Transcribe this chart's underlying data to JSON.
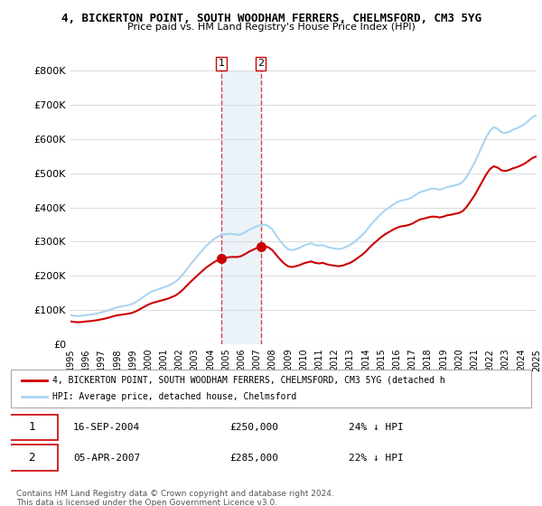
{
  "title": "4, BICKERTON POINT, SOUTH WOODHAM FERRERS, CHELMSFORD, CM3 5YG",
  "subtitle": "Price paid vs. HM Land Registry's House Price Index (HPI)",
  "ylabel": "",
  "xlabel": "",
  "ylim": [
    0,
    800000
  ],
  "yticks": [
    0,
    100000,
    200000,
    300000,
    400000,
    500000,
    600000,
    700000,
    800000
  ],
  "ytick_labels": [
    "£0",
    "£100K",
    "£200K",
    "£300K",
    "£400K",
    "£500K",
    "£600K",
    "£700K",
    "£800K"
  ],
  "background_color": "#ffffff",
  "plot_bg_color": "#ffffff",
  "grid_color": "#dddddd",
  "hpi_color": "#aad4f0",
  "price_color": "#cc0000",
  "sale1_date": "16-SEP-2004",
  "sale1_price": 250000,
  "sale1_pct": "24% ↓ HPI",
  "sale2_date": "05-APR-2007",
  "sale2_price": 285000,
  "sale2_pct": "22% ↓ HPI",
  "legend_line1": "4, BICKERTON POINT, SOUTH WOODHAM FERRERS, CHELMSFORD, CM3 5YG (detached h",
  "legend_line2": "HPI: Average price, detached house, Chelmsford",
  "footnote": "Contains HM Land Registry data © Crown copyright and database right 2024.\nThis data is licensed under the Open Government Licence v3.0.",
  "hpi_years": [
    1995.0,
    1995.25,
    1995.5,
    1995.75,
    1996.0,
    1996.25,
    1996.5,
    1996.75,
    1997.0,
    1997.25,
    1997.5,
    1997.75,
    1998.0,
    1998.25,
    1998.5,
    1998.75,
    1999.0,
    1999.25,
    1999.5,
    1999.75,
    2000.0,
    2000.25,
    2000.5,
    2000.75,
    2001.0,
    2001.25,
    2001.5,
    2001.75,
    2002.0,
    2002.25,
    2002.5,
    2002.75,
    2003.0,
    2003.25,
    2003.5,
    2003.75,
    2004.0,
    2004.25,
    2004.5,
    2004.75,
    2005.0,
    2005.25,
    2005.5,
    2005.75,
    2006.0,
    2006.25,
    2006.5,
    2006.75,
    2007.0,
    2007.25,
    2007.5,
    2007.75,
    2008.0,
    2008.25,
    2008.5,
    2008.75,
    2009.0,
    2009.25,
    2009.5,
    2009.75,
    2010.0,
    2010.25,
    2010.5,
    2010.75,
    2011.0,
    2011.25,
    2011.5,
    2011.75,
    2012.0,
    2012.25,
    2012.5,
    2012.75,
    2013.0,
    2013.25,
    2013.5,
    2013.75,
    2014.0,
    2014.25,
    2014.5,
    2014.75,
    2015.0,
    2015.25,
    2015.5,
    2015.75,
    2016.0,
    2016.25,
    2016.5,
    2016.75,
    2017.0,
    2017.25,
    2017.5,
    2017.75,
    2018.0,
    2018.25,
    2018.5,
    2018.75,
    2019.0,
    2019.25,
    2019.5,
    2019.75,
    2020.0,
    2020.25,
    2020.5,
    2020.75,
    2021.0,
    2021.25,
    2021.5,
    2021.75,
    2022.0,
    2022.25,
    2022.5,
    2022.75,
    2023.0,
    2023.25,
    2023.5,
    2023.75,
    2024.0,
    2024.25,
    2024.5,
    2024.75,
    2025.0
  ],
  "hpi_values": [
    85000,
    83000,
    82000,
    83000,
    85000,
    86000,
    88000,
    90000,
    93000,
    96000,
    100000,
    104000,
    108000,
    110000,
    112000,
    114000,
    118000,
    124000,
    132000,
    140000,
    148000,
    154000,
    158000,
    162000,
    166000,
    170000,
    176000,
    182000,
    192000,
    205000,
    220000,
    235000,
    248000,
    262000,
    275000,
    288000,
    298000,
    308000,
    315000,
    320000,
    322000,
    323000,
    322000,
    320000,
    322000,
    328000,
    335000,
    340000,
    345000,
    348000,
    350000,
    345000,
    335000,
    318000,
    302000,
    288000,
    278000,
    275000,
    278000,
    282000,
    288000,
    292000,
    295000,
    290000,
    288000,
    290000,
    285000,
    282000,
    280000,
    278000,
    280000,
    285000,
    290000,
    298000,
    308000,
    318000,
    330000,
    345000,
    358000,
    370000,
    382000,
    392000,
    400000,
    408000,
    415000,
    420000,
    422000,
    425000,
    430000,
    438000,
    445000,
    448000,
    452000,
    455000,
    455000,
    452000,
    455000,
    460000,
    462000,
    465000,
    468000,
    475000,
    490000,
    510000,
    530000,
    555000,
    580000,
    605000,
    625000,
    635000,
    630000,
    620000,
    618000,
    622000,
    628000,
    632000,
    638000,
    645000,
    655000,
    665000,
    670000
  ],
  "sale1_year": 2004.71,
  "sale2_year": 2007.25,
  "xmin": 1995,
  "xmax": 2025
}
